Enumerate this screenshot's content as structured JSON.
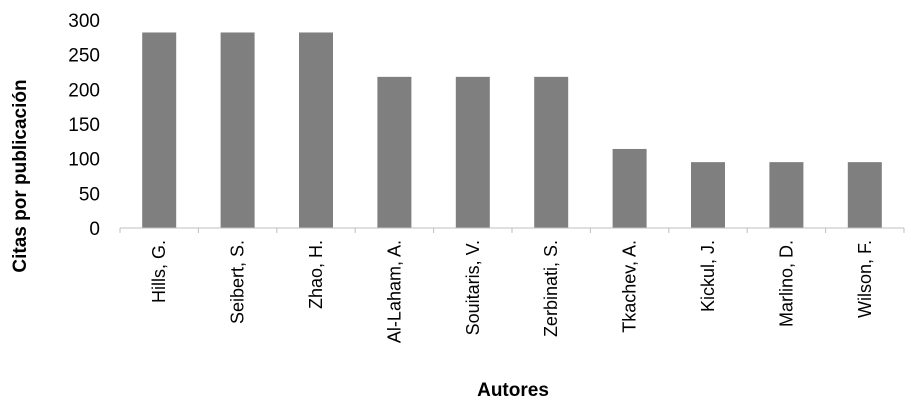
{
  "chart_data": {
    "type": "bar",
    "title": "",
    "xlabel": "Autores",
    "ylabel": "Citas por publicación",
    "categories": [
      "Hills, G.",
      "Seibert, S.",
      "Zhao, H.",
      "Al-Laham, A.",
      "Souitaris, V.",
      "Zerbinati, S.",
      "Tkachev, A.",
      "Kickul, J.",
      "Marlino, D.",
      "Wilson, F."
    ],
    "series": [
      {
        "values": [
          282,
          282,
          282,
          218,
          218,
          218,
          114,
          95,
          95,
          95
        ],
        "color": "#7f7f7f"
      }
    ],
    "ylim": [
      0,
      300
    ],
    "yticks": [
      0,
      50,
      100,
      150,
      200,
      250,
      300
    ],
    "grid": false,
    "legend": "none"
  }
}
